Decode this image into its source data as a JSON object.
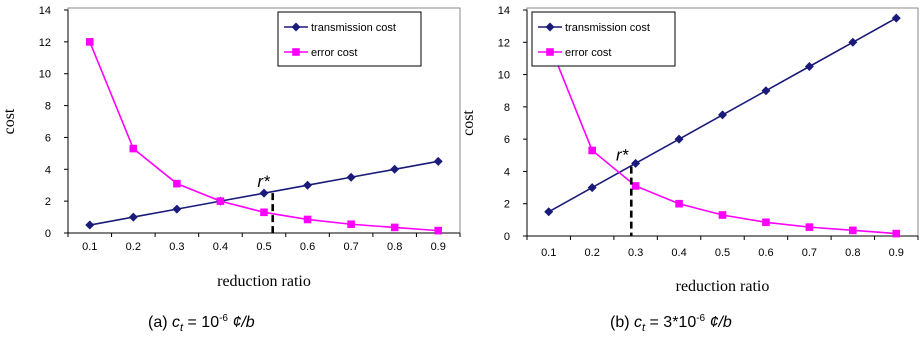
{
  "colors": {
    "transmission": "#1a1a7a",
    "error": "#ff00ff",
    "marker_line": "#000000"
  },
  "chart_data": [
    {
      "type": "line",
      "x": [
        0.1,
        0.2,
        0.3,
        0.4,
        0.5,
        0.6,
        0.7,
        0.8,
        0.9
      ],
      "x_tick_labels": [
        "0.1",
        "0.2",
        "0.3",
        "0.4",
        "0.5",
        "0.6",
        "0.7",
        "0.8",
        "0.9"
      ],
      "y_tick_labels": [
        "0",
        "2",
        "4",
        "6",
        "8",
        "10",
        "12",
        "14"
      ],
      "ylim": [
        0,
        14
      ],
      "xlabel": "reduction ratio",
      "ylabel": "cost",
      "legend_position": "top-right",
      "series": [
        {
          "name": "transmission cost",
          "values": [
            0.5,
            1.0,
            1.5,
            2.0,
            2.5,
            3.0,
            3.5,
            4.0,
            4.5
          ],
          "marker": "diamond"
        },
        {
          "name": "error cost",
          "values": [
            12.0,
            5.3,
            3.1,
            2.0,
            1.3,
            0.85,
            0.55,
            0.35,
            0.15
          ],
          "marker": "square"
        }
      ],
      "annotation": {
        "text": "r*",
        "x": 0.52,
        "y": 2.5
      },
      "caption": {
        "prefix": "(a) ",
        "var": "c",
        "sub": "t",
        "eq": " = 10",
        "sup": "-6",
        "unit": " ¢/b"
      }
    },
    {
      "type": "line",
      "x": [
        0.1,
        0.2,
        0.3,
        0.4,
        0.5,
        0.6,
        0.7,
        0.8,
        0.9
      ],
      "x_tick_labels": [
        "0.1",
        "0.2",
        "0.3",
        "0.4",
        "0.5",
        "0.6",
        "0.7",
        "0.8",
        "0.9"
      ],
      "y_tick_labels": [
        "0",
        "2",
        "4",
        "6",
        "8",
        "10",
        "12",
        "14"
      ],
      "ylim": [
        0,
        14
      ],
      "xlabel": "reduction ratio",
      "ylabel": "cost",
      "legend_position": "top-left",
      "series": [
        {
          "name": "transmission cost",
          "values": [
            1.5,
            3.0,
            4.5,
            6.0,
            7.5,
            9.0,
            10.5,
            12.0,
            13.5
          ],
          "marker": "diamond"
        },
        {
          "name": "error cost",
          "values": [
            12.0,
            5.3,
            3.1,
            2.0,
            1.3,
            0.85,
            0.55,
            0.35,
            0.15
          ],
          "marker": "square"
        }
      ],
      "annotation": {
        "text": "r*",
        "x": 0.29,
        "y": 4.3
      },
      "caption": {
        "prefix": "(b) ",
        "var": "c",
        "sub": "t",
        "eq": " = 3*10",
        "sup": "-6",
        "unit": " ¢/b"
      }
    }
  ]
}
